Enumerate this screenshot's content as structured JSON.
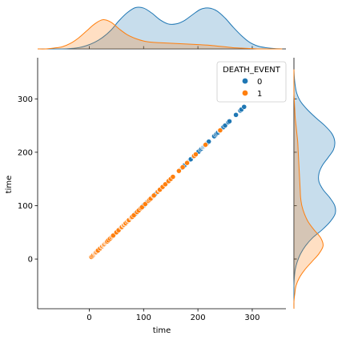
{
  "chart_data": {
    "type": "scatter",
    "xlabel": "time",
    "ylabel": "time",
    "xlim": [
      -95,
      362
    ],
    "ylim": [
      -93,
      377
    ],
    "x_ticks": [
      0,
      100,
      200,
      300
    ],
    "y_ticks": [
      0,
      100,
      200,
      300
    ],
    "grid": false,
    "legend": {
      "title": "DEATH_EVENT",
      "placement": "top-right",
      "entries": [
        {
          "label": "0",
          "color": "#1f77b4"
        },
        {
          "label": "1",
          "color": "#ff7f0e"
        }
      ]
    },
    "series": [
      {
        "label": "0",
        "color": "#1f77b4",
        "x": [
          10,
          14,
          18,
          22,
          28,
          35,
          40,
          45,
          55,
          60,
          65,
          70,
          74,
          79,
          82,
          85,
          88,
          90,
          94,
          96,
          100,
          104,
          107,
          109,
          112,
          115,
          117,
          121,
          130,
          140,
          145,
          147,
          154,
          171,
          174,
          175,
          180,
          185,
          186,
          187,
          192,
          195,
          197,
          200,
          201,
          205,
          207,
          209,
          210,
          211,
          212,
          213,
          214,
          215,
          216,
          220,
          230,
          233,
          235,
          237,
          240,
          241,
          244,
          245,
          246,
          247,
          250,
          256,
          258,
          270,
          278,
          280,
          285
        ],
        "y": [
          10,
          14,
          18,
          22,
          28,
          35,
          40,
          45,
          55,
          60,
          65,
          70,
          74,
          79,
          82,
          85,
          88,
          90,
          94,
          96,
          100,
          104,
          107,
          109,
          112,
          115,
          117,
          121,
          130,
          140,
          145,
          147,
          154,
          171,
          174,
          175,
          180,
          185,
          186,
          187,
          192,
          195,
          197,
          200,
          201,
          205,
          207,
          209,
          210,
          211,
          212,
          213,
          214,
          215,
          216,
          220,
          230,
          233,
          235,
          237,
          240,
          241,
          244,
          245,
          246,
          247,
          250,
          256,
          258,
          270,
          278,
          280,
          285
        ]
      },
      {
        "label": "1",
        "color": "#ff7f0e",
        "x": [
          4,
          6,
          8,
          10,
          11,
          12,
          13,
          15,
          16,
          20,
          23,
          24,
          26,
          27,
          28,
          30,
          31,
          32,
          33,
          35,
          38,
          41,
          43,
          44,
          50,
          54,
          59,
          60,
          63,
          64,
          66,
          67,
          70,
          72,
          73,
          77,
          78,
          79,
          82,
          88,
          91,
          95,
          97,
          103,
          109,
          111,
          113,
          118,
          119,
          126,
          129,
          130,
          135,
          140,
          146,
          150,
          154,
          165,
          172,
          180,
          193,
          196,
          214,
          241
        ],
        "y": [
          4,
          6,
          8,
          10,
          11,
          12,
          13,
          15,
          16,
          20,
          23,
          24,
          26,
          27,
          28,
          30,
          31,
          32,
          33,
          35,
          38,
          41,
          43,
          44,
          50,
          54,
          59,
          60,
          63,
          64,
          66,
          67,
          70,
          72,
          73,
          77,
          78,
          79,
          82,
          88,
          91,
          95,
          97,
          103,
          109,
          111,
          113,
          118,
          119,
          126,
          129,
          130,
          135,
          140,
          146,
          150,
          154,
          165,
          172,
          180,
          193,
          196,
          214,
          241
        ]
      }
    ],
    "marginal_kde": {
      "grid": [
        -95,
        -80,
        -65,
        -50,
        -35,
        -20,
        -5,
        10,
        25,
        40,
        55,
        70,
        85,
        100,
        115,
        130,
        145,
        160,
        175,
        190,
        205,
        220,
        235,
        250,
        265,
        280,
        295,
        310,
        325,
        340,
        355
      ],
      "series": [
        {
          "label": "0",
          "color": "#1f77b4",
          "density": [
            0,
            0,
            0,
            0,
            0.01,
            0.03,
            0.08,
            0.16,
            0.28,
            0.45,
            0.68,
            0.87,
            0.99,
            0.98,
            0.86,
            0.7,
            0.6,
            0.6,
            0.68,
            0.82,
            0.95,
            0.98,
            0.91,
            0.74,
            0.52,
            0.32,
            0.16,
            0.07,
            0.03,
            0.01,
            0
          ]
        },
        {
          "label": "1",
          "color": "#ff7f0e",
          "density": [
            0,
            0,
            0.02,
            0.05,
            0.13,
            0.26,
            0.43,
            0.6,
            0.7,
            0.64,
            0.48,
            0.34,
            0.25,
            0.19,
            0.16,
            0.15,
            0.14,
            0.13,
            0.12,
            0.11,
            0.1,
            0.09,
            0.07,
            0.05,
            0.03,
            0.02,
            0.01,
            0,
            0,
            0,
            0
          ]
        }
      ]
    }
  }
}
